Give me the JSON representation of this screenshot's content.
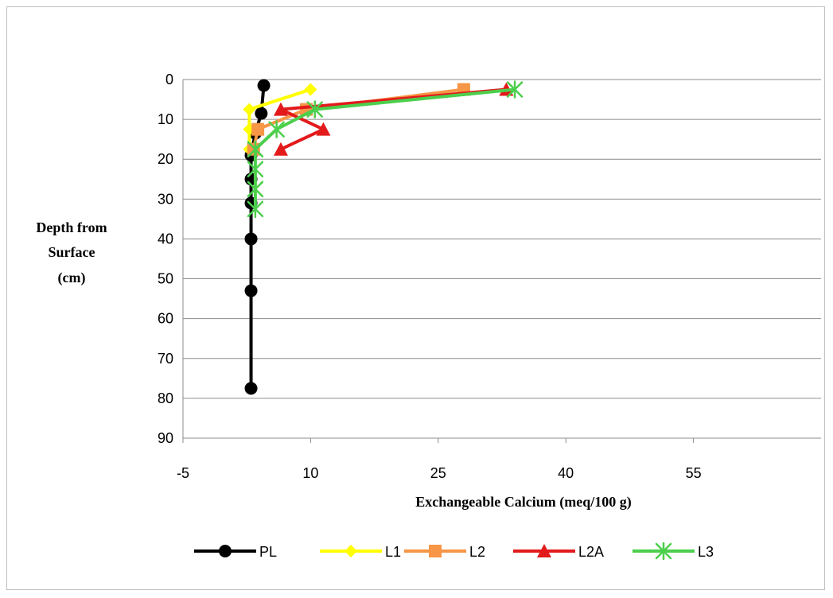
{
  "chart_data": {
    "type": "line",
    "title": "",
    "xlabel": "Exchangeable Calcium (meq/100 g)",
    "ylabel_lines": [
      "Depth from",
      "Surface",
      "(cm)"
    ],
    "xlim": [
      -5,
      70
    ],
    "ylim": [
      0,
      90
    ],
    "y_reversed": true,
    "x_ticks": [
      -5,
      10,
      25,
      40,
      55
    ],
    "y_ticks": [
      0,
      10,
      20,
      30,
      40,
      50,
      60,
      70,
      80,
      90
    ],
    "x_tick_labels": [
      "-5",
      "10",
      "25",
      "40",
      "55"
    ],
    "y_tick_labels": [
      "0",
      "10",
      "20",
      "30",
      "40",
      "50",
      "60",
      "70",
      "80",
      "90"
    ],
    "grid": "horizontal",
    "legend_position": "bottom",
    "series": [
      {
        "name": "PL",
        "color": "#000000",
        "marker": "circle",
        "points": [
          [
            4.5,
            1.5
          ],
          [
            4.2,
            8.5
          ],
          [
            3.5,
            13.5
          ],
          [
            3.0,
            19
          ],
          [
            3.0,
            25
          ],
          [
            3.0,
            31
          ],
          [
            3.0,
            40
          ],
          [
            3.0,
            53
          ],
          [
            3.0,
            77.5
          ]
        ]
      },
      {
        "name": "L1",
        "color": "#ffff00",
        "marker": "diamond",
        "points": [
          [
            10.0,
            2.5
          ],
          [
            2.8,
            7.5
          ],
          [
            2.8,
            12.5
          ],
          [
            2.8,
            17.5
          ]
        ]
      },
      {
        "name": "L2",
        "color": "#f79646",
        "marker": "square",
        "points": [
          [
            28.0,
            2.5
          ],
          [
            9.5,
            7.5
          ],
          [
            3.8,
            12.5
          ],
          [
            3.3,
            17.5
          ]
        ]
      },
      {
        "name": "L2A",
        "color": "#e31a1c",
        "marker": "triangle",
        "points": [
          [
            33.0,
            2.5
          ],
          [
            6.5,
            7.5
          ],
          [
            11.5,
            12.5
          ],
          [
            6.5,
            17.5
          ]
        ]
      },
      {
        "name": "L3",
        "color": "#4ccf4c",
        "marker": "asterisk",
        "points": [
          [
            34.0,
            2.5
          ],
          [
            10.5,
            7.5
          ],
          [
            6.0,
            12.5
          ],
          [
            3.5,
            17.5
          ],
          [
            3.5,
            22.5
          ],
          [
            3.5,
            27.5
          ],
          [
            3.5,
            32.5
          ]
        ]
      }
    ]
  }
}
